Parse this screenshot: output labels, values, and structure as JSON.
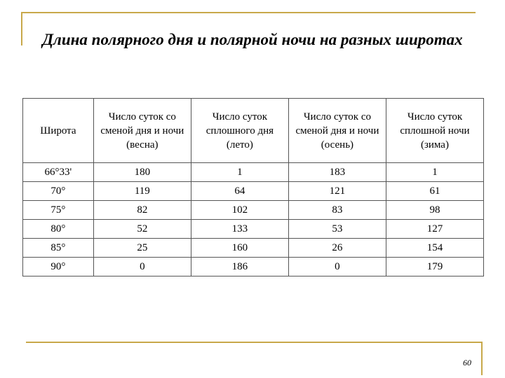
{
  "title": "Длина полярного дня и полярной ночи на разных широтах",
  "table": {
    "headers": [
      "Широта",
      "Число суток со сменой дня и ночи (весна)",
      "Число суток сплошного дня (лето)",
      "Число суток со сменой дня и ночи (осень)",
      "Число суток сплошной ночи (зима)"
    ],
    "rows": [
      [
        "66°33'",
        "180",
        "1",
        "183",
        "1"
      ],
      [
        "70°",
        "119",
        "64",
        "121",
        "61"
      ],
      [
        "75°",
        "82",
        "102",
        "83",
        "98"
      ],
      [
        "80°",
        "52",
        "133",
        "53",
        "127"
      ],
      [
        "85°",
        "25",
        "160",
        "26",
        "154"
      ],
      [
        "90°",
        "0",
        "186",
        "0",
        "179"
      ]
    ]
  },
  "page_number": "60",
  "colors": {
    "accent_lines": "#c8a84a",
    "table_border": "#555555"
  }
}
